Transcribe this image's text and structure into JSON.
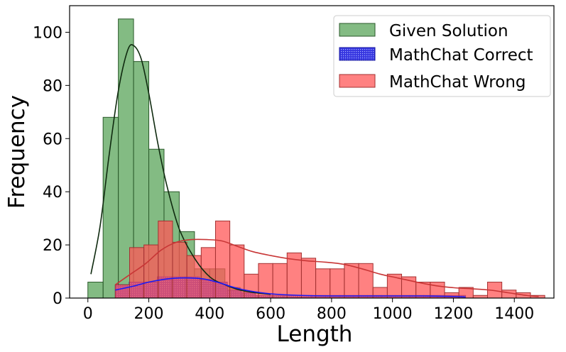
{
  "chart_data": {
    "type": "histogram",
    "xlabel": "Length",
    "ylabel": "Frequency",
    "xlim": [
      -60,
      1530
    ],
    "ylim": [
      0,
      110
    ],
    "xticks": [
      0,
      200,
      400,
      600,
      800,
      1000,
      1200,
      1400
    ],
    "yticks": [
      0,
      20,
      40,
      60,
      80,
      100
    ],
    "grid": false,
    "legend_placement": "top-right",
    "series": [
      {
        "name": "Given Solution",
        "color": "#4f9e4f",
        "edge": "#2b5a2b",
        "kde_color": "#0f2a0f",
        "bins": [
          {
            "x0": 0,
            "x1": 50,
            "count": 6
          },
          {
            "x0": 50,
            "x1": 100,
            "count": 68
          },
          {
            "x0": 100,
            "x1": 150,
            "count": 105
          },
          {
            "x0": 150,
            "x1": 200,
            "count": 89
          },
          {
            "x0": 200,
            "x1": 250,
            "count": 56
          },
          {
            "x0": 250,
            "x1": 300,
            "count": 40
          },
          {
            "x0": 300,
            "x1": 350,
            "count": 25
          },
          {
            "x0": 350,
            "x1": 400,
            "count": 11
          },
          {
            "x0": 400,
            "x1": 450,
            "count": 11
          },
          {
            "x0": 450,
            "x1": 500,
            "count": 4
          }
        ],
        "kde": [
          [
            10,
            9
          ],
          [
            40,
            27
          ],
          [
            70,
            54
          ],
          [
            100,
            78
          ],
          [
            130,
            93
          ],
          [
            150,
            95
          ],
          [
            175,
            90
          ],
          [
            200,
            77
          ],
          [
            230,
            58
          ],
          [
            260,
            42
          ],
          [
            300,
            26
          ],
          [
            350,
            15
          ],
          [
            400,
            8
          ],
          [
            450,
            5
          ],
          [
            500,
            3
          ],
          [
            550,
            2
          ],
          [
            600,
            1.4
          ]
        ]
      },
      {
        "name": "MathChat Correct",
        "color": "#3535e0",
        "edge": "#1a1aa0",
        "kde_color": "#1a1af5",
        "bins": [
          {
            "x0": 90,
            "x1": 136,
            "count": 5
          },
          {
            "x0": 136,
            "x1": 182,
            "count": 6
          },
          {
            "x0": 182,
            "x1": 228,
            "count": 6
          },
          {
            "x0": 228,
            "x1": 274,
            "count": 8
          },
          {
            "x0": 274,
            "x1": 320,
            "count": 8
          },
          {
            "x0": 320,
            "x1": 366,
            "count": 8
          },
          {
            "x0": 366,
            "x1": 412,
            "count": 7
          },
          {
            "x0": 412,
            "x1": 458,
            "count": 6
          },
          {
            "x0": 458,
            "x1": 504,
            "count": 3
          },
          {
            "x0": 504,
            "x1": 550,
            "count": 2
          },
          {
            "x0": 550,
            "x1": 596,
            "count": 1
          },
          {
            "x0": 596,
            "x1": 642,
            "count": 1
          },
          {
            "x0": 642,
            "x1": 688,
            "count": 1
          },
          {
            "x0": 688,
            "x1": 734,
            "count": 1
          },
          {
            "x0": 734,
            "x1": 780,
            "count": 1
          },
          {
            "x0": 780,
            "x1": 826,
            "count": 1
          },
          {
            "x0": 826,
            "x1": 872,
            "count": 1
          },
          {
            "x0": 872,
            "x1": 918,
            "count": 1
          },
          {
            "x0": 918,
            "x1": 964,
            "count": 1
          },
          {
            "x0": 964,
            "x1": 1010,
            "count": 1
          },
          {
            "x0": 1010,
            "x1": 1056,
            "count": 1
          },
          {
            "x0": 1056,
            "x1": 1102,
            "count": 1
          },
          {
            "x0": 1102,
            "x1": 1148,
            "count": 1
          },
          {
            "x0": 1148,
            "x1": 1194,
            "count": 1
          },
          {
            "x0": 1194,
            "x1": 1240,
            "count": 1
          }
        ],
        "kde": [
          [
            90,
            3
          ],
          [
            150,
            4.5
          ],
          [
            200,
            6
          ],
          [
            260,
            7.2
          ],
          [
            320,
            7.6
          ],
          [
            380,
            7.2
          ],
          [
            430,
            5.8
          ],
          [
            480,
            4
          ],
          [
            530,
            2.7
          ],
          [
            600,
            1.6
          ],
          [
            700,
            1
          ],
          [
            800,
            0.8
          ],
          [
            900,
            0.8
          ],
          [
            1000,
            0.8
          ],
          [
            1100,
            0.8
          ],
          [
            1200,
            0.6
          ],
          [
            1240,
            0.4
          ]
        ]
      },
      {
        "name": "MathChat Wrong",
        "color": "#ff5757",
        "edge": "#a33232",
        "kde_color": "#c83636",
        "bins": [
          {
            "x0": 90,
            "x1": 137,
            "count": 5
          },
          {
            "x0": 137,
            "x1": 184,
            "count": 19
          },
          {
            "x0": 184,
            "x1": 231,
            "count": 20
          },
          {
            "x0": 231,
            "x1": 278,
            "count": 29
          },
          {
            "x0": 278,
            "x1": 325,
            "count": 21
          },
          {
            "x0": 325,
            "x1": 372,
            "count": 16
          },
          {
            "x0": 372,
            "x1": 419,
            "count": 19
          },
          {
            "x0": 419,
            "x1": 466,
            "count": 29
          },
          {
            "x0": 466,
            "x1": 513,
            "count": 20
          },
          {
            "x0": 513,
            "x1": 560,
            "count": 9
          },
          {
            "x0": 560,
            "x1": 607,
            "count": 13
          },
          {
            "x0": 607,
            "x1": 654,
            "count": 13
          },
          {
            "x0": 654,
            "x1": 701,
            "count": 17
          },
          {
            "x0": 701,
            "x1": 748,
            "count": 15
          },
          {
            "x0": 748,
            "x1": 795,
            "count": 11
          },
          {
            "x0": 795,
            "x1": 842,
            "count": 11
          },
          {
            "x0": 842,
            "x1": 889,
            "count": 13
          },
          {
            "x0": 889,
            "x1": 936,
            "count": 13
          },
          {
            "x0": 936,
            "x1": 983,
            "count": 4
          },
          {
            "x0": 983,
            "x1": 1030,
            "count": 9
          },
          {
            "x0": 1030,
            "x1": 1077,
            "count": 8
          },
          {
            "x0": 1077,
            "x1": 1124,
            "count": 6
          },
          {
            "x0": 1124,
            "x1": 1171,
            "count": 6
          },
          {
            "x0": 1171,
            "x1": 1218,
            "count": 2
          },
          {
            "x0": 1218,
            "x1": 1265,
            "count": 4
          },
          {
            "x0": 1265,
            "x1": 1312,
            "count": 1
          },
          {
            "x0": 1312,
            "x1": 1359,
            "count": 6
          },
          {
            "x0": 1359,
            "x1": 1406,
            "count": 3
          },
          {
            "x0": 1406,
            "x1": 1453,
            "count": 2
          },
          {
            "x0": 1453,
            "x1": 1500,
            "count": 1
          }
        ],
        "kde": [
          [
            90,
            5
          ],
          [
            140,
            9
          ],
          [
            190,
            13
          ],
          [
            240,
            18
          ],
          [
            290,
            21
          ],
          [
            340,
            22
          ],
          [
            390,
            22
          ],
          [
            440,
            21.5
          ],
          [
            490,
            19.5
          ],
          [
            540,
            17.5
          ],
          [
            600,
            16
          ],
          [
            660,
            14.8
          ],
          [
            720,
            14
          ],
          [
            780,
            13.5
          ],
          [
            840,
            12.7
          ],
          [
            900,
            11
          ],
          [
            960,
            9
          ],
          [
            1020,
            7.5
          ],
          [
            1080,
            6
          ],
          [
            1140,
            4.7
          ],
          [
            1200,
            3.9
          ],
          [
            1260,
            3.5
          ],
          [
            1320,
            3
          ],
          [
            1380,
            2
          ],
          [
            1440,
            1
          ],
          [
            1480,
            0.6
          ]
        ]
      }
    ]
  }
}
